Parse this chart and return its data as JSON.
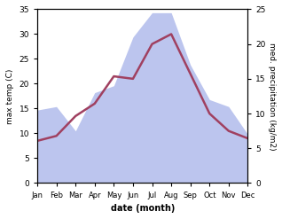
{
  "months": [
    "Jan",
    "Feb",
    "Mar",
    "Apr",
    "May",
    "Jun",
    "Jul",
    "Aug",
    "Sep",
    "Oct",
    "Nov",
    "Dec"
  ],
  "month_indices": [
    0,
    1,
    2,
    3,
    4,
    5,
    6,
    7,
    8,
    9,
    10,
    11
  ],
  "temperature": [
    8.5,
    9.5,
    13.5,
    16.0,
    21.5,
    21.0,
    28.0,
    30.0,
    22.0,
    14.0,
    10.5,
    9.0
  ],
  "precipitation": [
    10.5,
    11.0,
    7.5,
    13.0,
    14.0,
    21.0,
    24.5,
    24.5,
    17.0,
    12.0,
    11.0,
    7.0
  ],
  "temp_color": "#a04060",
  "precip_fill_color": "#bcc5ee",
  "temp_ylim": [
    0,
    35
  ],
  "precip_ylim": [
    0,
    25
  ],
  "temp_yticks": [
    0,
    5,
    10,
    15,
    20,
    25,
    30,
    35
  ],
  "precip_yticks": [
    0,
    5,
    10,
    15,
    20,
    25
  ],
  "xlabel": "date (month)",
  "ylabel_left": "max temp (C)",
  "ylabel_right": "med. precipitation (kg/m2)",
  "bg_color": "#ffffff",
  "line_width": 1.8,
  "temp_scale_max": 35,
  "precip_scale_max": 25
}
